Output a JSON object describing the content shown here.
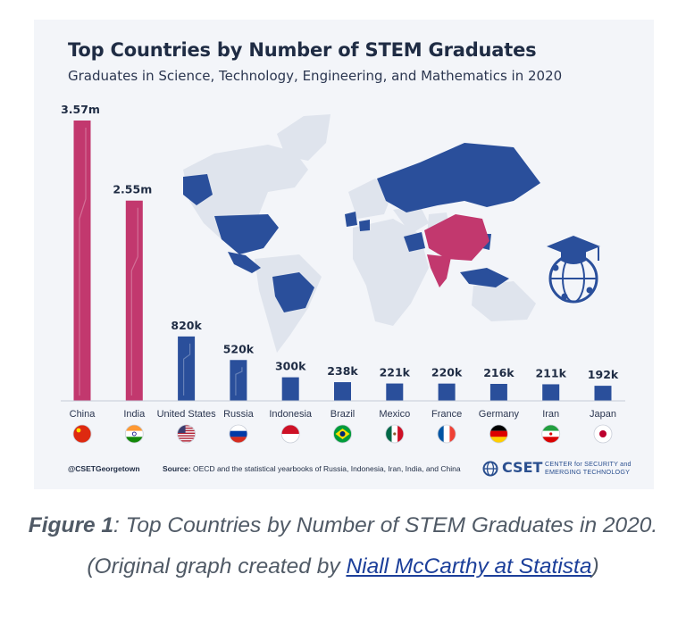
{
  "chart_data": {
    "type": "bar",
    "title": "Top Countries by Number of STEM Graduates",
    "subtitle": "Graduates in Science, Technology, Engineering, and Mathematics in 2020",
    "categories": [
      "China",
      "India",
      "United States",
      "Russia",
      "Indonesia",
      "Brazil",
      "Mexico",
      "France",
      "Germany",
      "Iran",
      "Japan"
    ],
    "values": [
      3570000,
      2550000,
      820000,
      520000,
      300000,
      238000,
      221000,
      220000,
      216000,
      211000,
      192000
    ],
    "value_labels": [
      "3.57m",
      "2.55m",
      "820k",
      "520k",
      "300k",
      "238k",
      "221k",
      "220k",
      "216k",
      "211k",
      "192k"
    ],
    "ylim": [
      0,
      3570000
    ],
    "colors": {
      "highlight": "#c2386e",
      "default": "#2a4f9b",
      "map_land": "#dfe4ed"
    },
    "highlighted_categories": [
      "China",
      "India"
    ],
    "grid": false,
    "legend": "none"
  },
  "footer": {
    "handle": "@CSETGeorgetown",
    "source_label": "Source:",
    "source_text": "OECD and the statistical yearbooks of Russia, Indonesia, Iran, India, and China",
    "logo_word": "CSET",
    "logo_line1": "CENTER for SECURITY and",
    "logo_line2": "EMERGING TECHNOLOGY"
  },
  "caption": {
    "figure_label": "Figure 1",
    "text": ": Top Countries by Number of STEM Graduates in 2020. (Original graph created by ",
    "link_text": "Niall McCarthy at Statista",
    "closing": ")"
  },
  "icons": {
    "map": "world-map",
    "globe": "graduation-globe-icon",
    "flags": [
      "china-flag-icon",
      "india-flag-icon",
      "usa-flag-icon",
      "russia-flag-icon",
      "indonesia-flag-icon",
      "brazil-flag-icon",
      "mexico-flag-icon",
      "france-flag-icon",
      "germany-flag-icon",
      "iran-flag-icon",
      "japan-flag-icon"
    ]
  }
}
